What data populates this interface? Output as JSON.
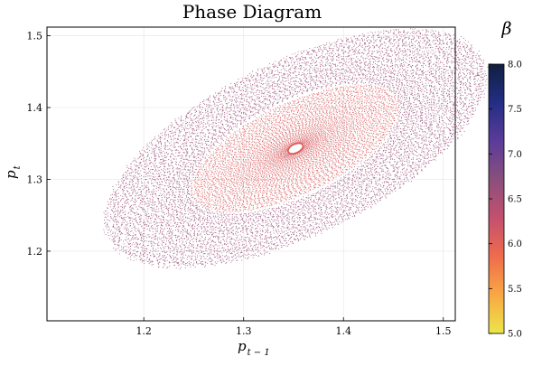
{
  "chart_data": {
    "type": "scatter",
    "title": "Phase Diagram",
    "xlabel": {
      "base": "p",
      "sub": "t − 1"
    },
    "ylabel": {
      "base": "p",
      "sub": "t"
    },
    "xlim": [
      1.103,
      1.512
    ],
    "ylim": [
      1.103,
      1.512
    ],
    "xticks": [
      1.2,
      1.3,
      1.4,
      1.5
    ],
    "xtick_labels": [
      "1.2",
      "1.3",
      "1.4",
      "1.5"
    ],
    "yticks": [
      1.2,
      1.3,
      1.4,
      1.5
    ],
    "ytick_labels": [
      "1.2",
      "1.3",
      "1.4",
      "1.5"
    ],
    "grid": true,
    "colorbar": {
      "title": "β",
      "range": [
        5.0,
        8.0
      ],
      "ticks": [
        5.0,
        5.5,
        6.0,
        6.5,
        7.0,
        7.5,
        8.0
      ],
      "tick_labels": [
        "5.0",
        "5.5",
        "6.0",
        "6.5",
        "7.0",
        "7.5",
        "8.0"
      ],
      "colormap_stops": [
        "#ebe649",
        "#f9a844",
        "#ef6c4c",
        "#c4506e",
        "#8a4f7d",
        "#5a3c99",
        "#232e85",
        "#0f1f3f"
      ],
      "marker": "-"
    },
    "orbit": {
      "center": [
        1.352,
        1.343
      ],
      "major_axis_direction": [
        0.833,
        0.553
      ],
      "outer_semi_axes": [
        0.2067,
        0.0325
      ],
      "outer_point_values": [
        1.48,
        1.49
      ],
      "inner_point_values": [
        1.36,
        1.35
      ],
      "color_value": 6.6
    }
  }
}
